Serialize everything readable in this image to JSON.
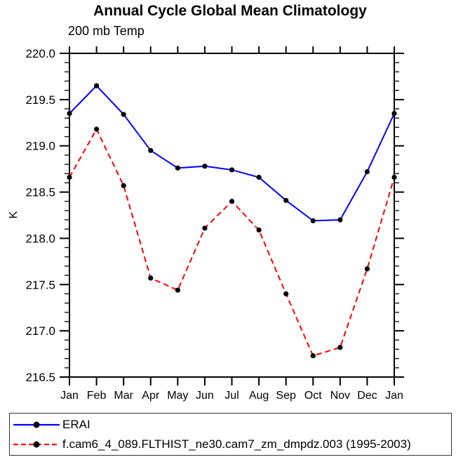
{
  "title": "Annual Cycle Global Mean Climatology",
  "subtitle": "200 mb Temp",
  "chart_data": {
    "type": "line",
    "title": "Annual Cycle Global Mean Climatology",
    "subtitle": "200 mb Temp",
    "ylabel": "K",
    "xlabel": "",
    "categories": [
      "Jan",
      "Feb",
      "Mar",
      "Apr",
      "May",
      "Jun",
      "Jul",
      "Aug",
      "Sep",
      "Oct",
      "Nov",
      "Dec",
      "Jan"
    ],
    "ylim": [
      216.5,
      220.0
    ],
    "ytick_major_labels": [
      "216.5",
      "217.0",
      "217.5",
      "218.0",
      "218.5",
      "219.0",
      "219.5",
      "220.0"
    ],
    "ytick_minor_step": 0.1,
    "grid": false,
    "legend_position": "bottom",
    "axis_color": "#000000",
    "marker": {
      "shape": "circle",
      "color": "#000000"
    },
    "series": [
      {
        "name": "ERAI",
        "color": "#0000ff",
        "line_style": "solid",
        "values": [
          219.35,
          219.65,
          219.34,
          218.95,
          218.76,
          218.78,
          218.74,
          218.66,
          218.41,
          218.19,
          218.2,
          218.72,
          219.35
        ]
      },
      {
        "name": "f.cam6_4_089.FLTHIST_ne30.cam7_zm_dmpdz.003 (1995-2003)",
        "color": "#ff0000",
        "line_style": "dashed",
        "values": [
          218.66,
          219.18,
          218.57,
          217.57,
          217.44,
          218.11,
          218.4,
          218.09,
          217.4,
          216.73,
          216.82,
          217.67,
          218.66
        ]
      }
    ]
  }
}
